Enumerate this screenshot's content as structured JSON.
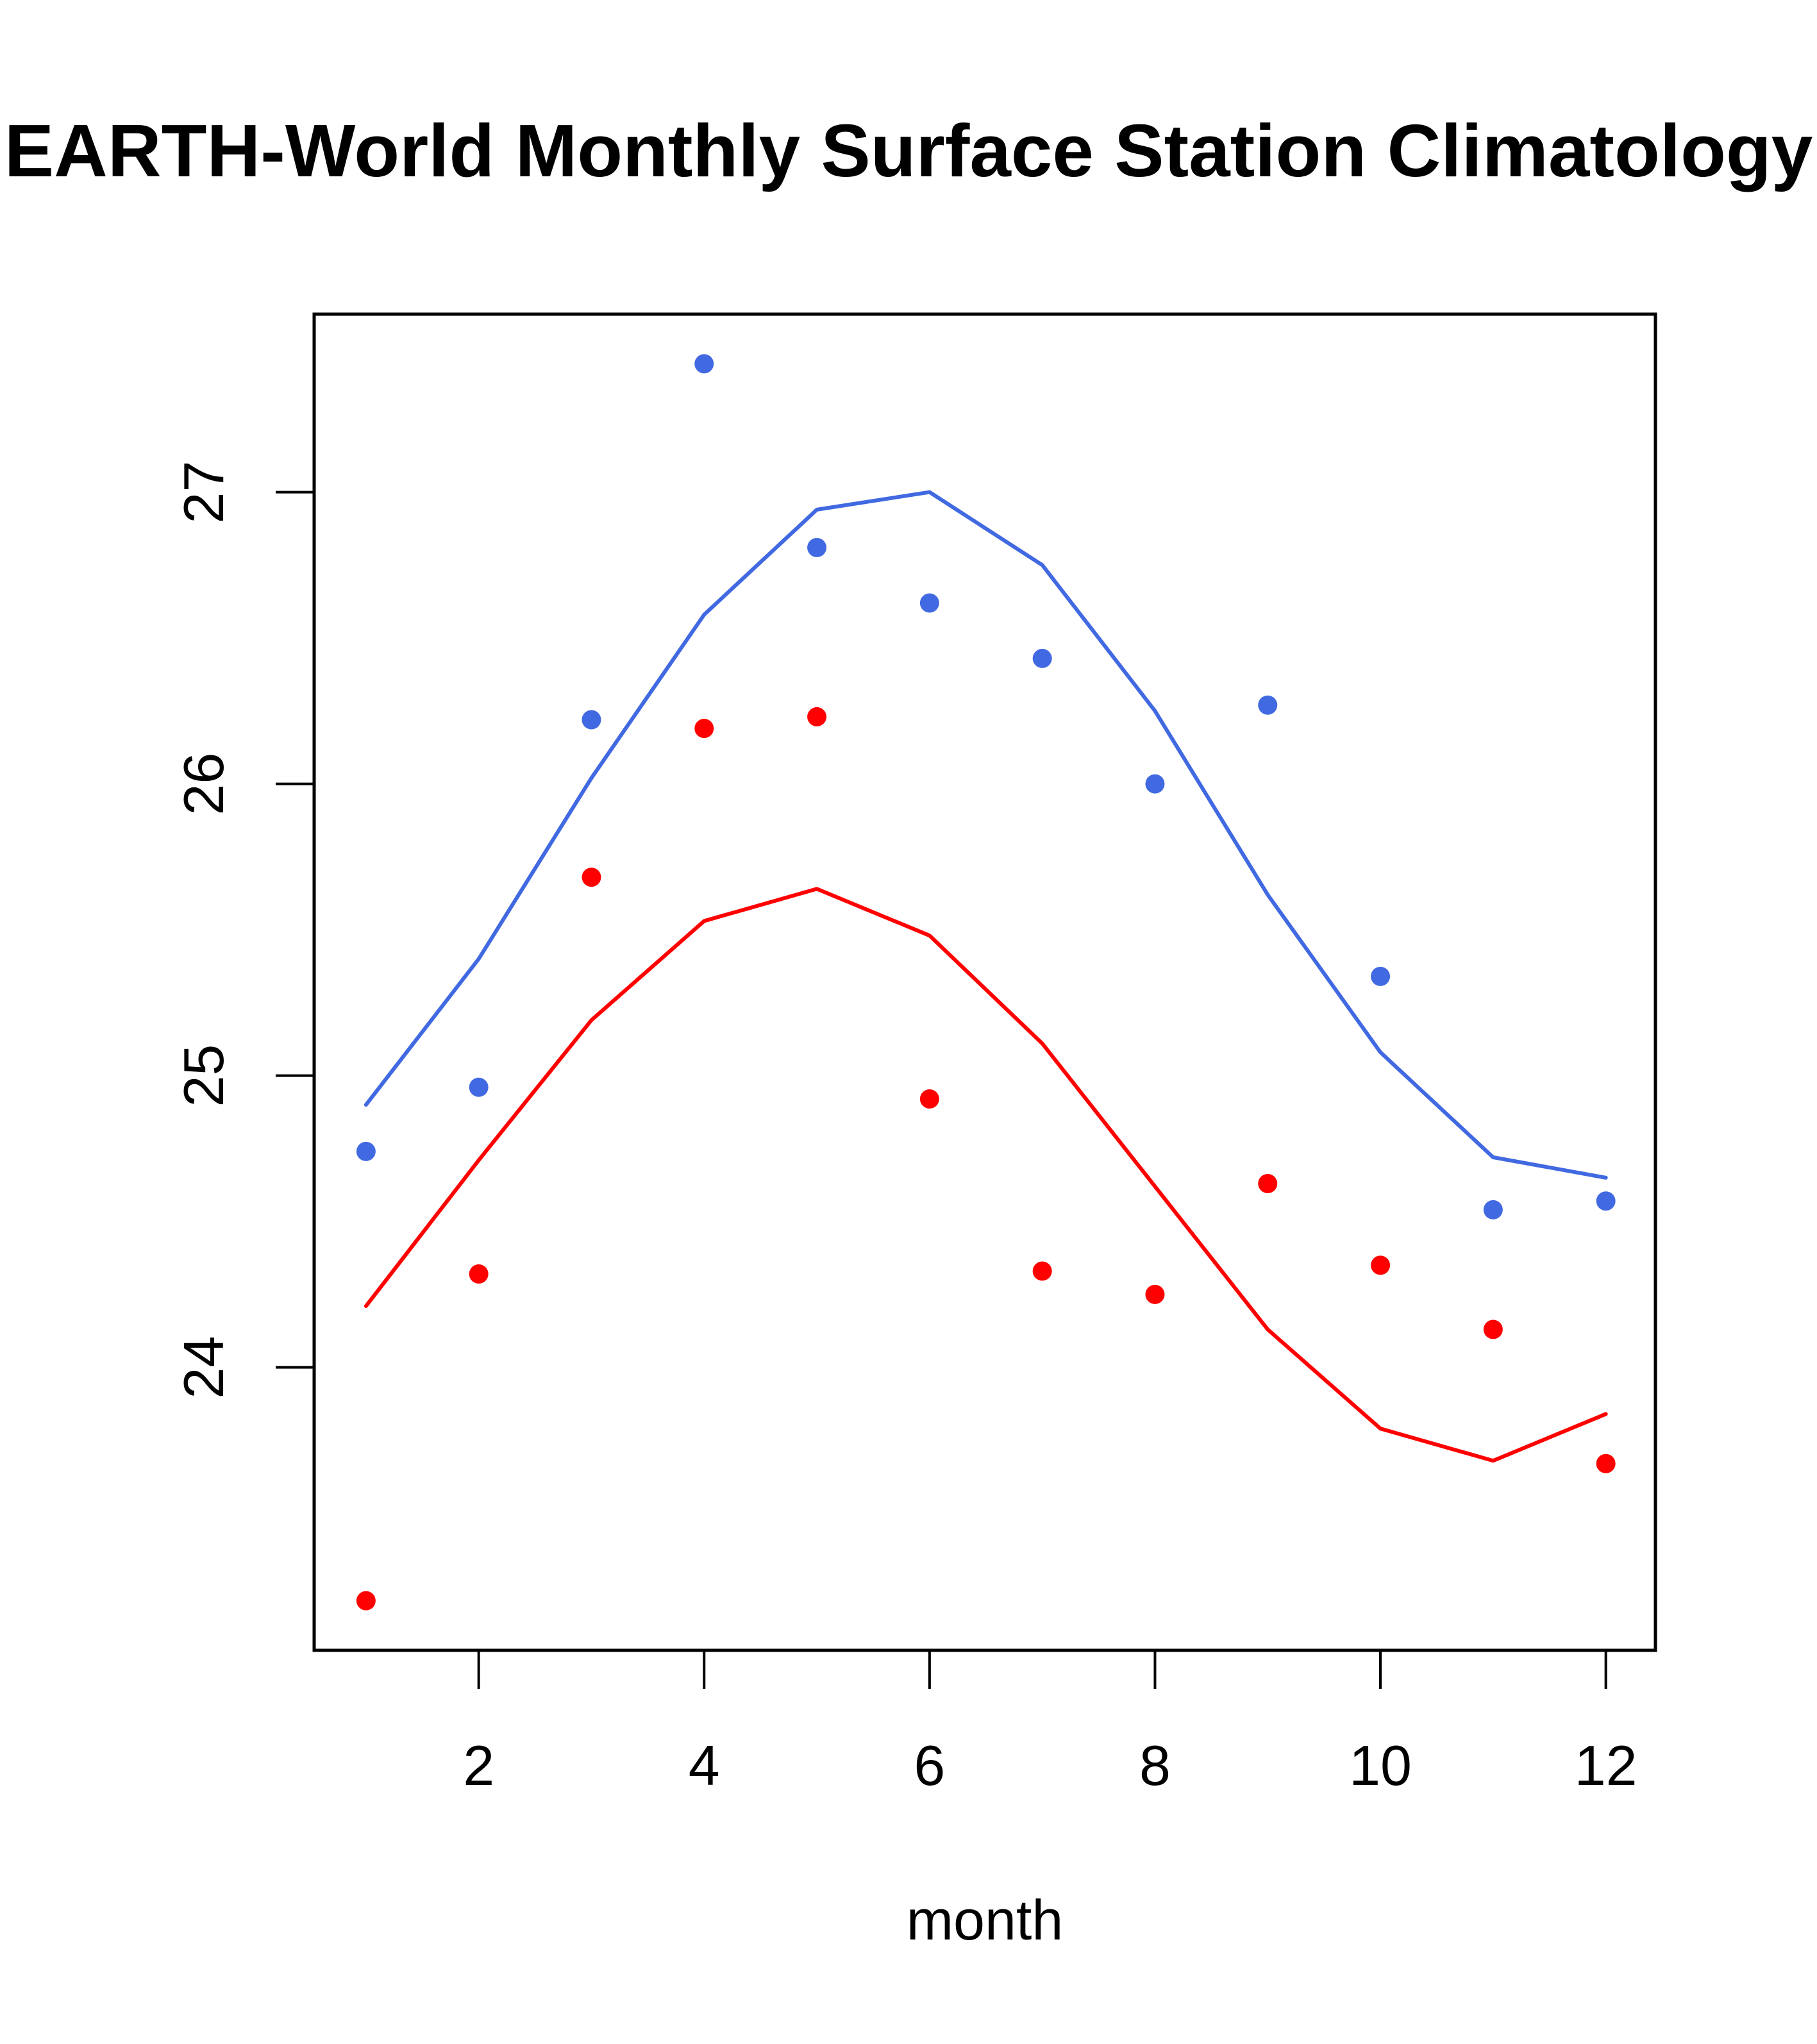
{
  "chart_data": {
    "type": "line",
    "title": "EARTH-World Monthly Surface Station Climatology",
    "xlabel": "month",
    "ylabel": "",
    "xlim": [
      0.54,
      12.44
    ],
    "ylim": [
      23.03,
      27.61
    ],
    "xticks": [
      2,
      4,
      6,
      8,
      10,
      12
    ],
    "yticks": [
      24,
      25,
      26,
      27
    ],
    "grid": false,
    "legend": "none",
    "x": [
      1,
      2,
      3,
      4,
      5,
      6,
      7,
      8,
      9,
      10,
      11,
      12
    ],
    "series": [
      {
        "name": "blue-line",
        "kind": "line",
        "color": "#4169E1",
        "values": [
          24.9,
          25.4,
          26.02,
          26.58,
          26.94,
          27.0,
          26.75,
          26.25,
          25.62,
          25.08,
          24.72,
          24.65
        ]
      },
      {
        "name": "blue-points",
        "kind": "scatter",
        "color": "#4169E1",
        "values": [
          24.74,
          24.96,
          26.22,
          27.44,
          26.81,
          26.62,
          26.43,
          26.0,
          26.27,
          25.34,
          24.54,
          24.57
        ]
      },
      {
        "name": "red-line",
        "kind": "line",
        "color": "#FF0000",
        "values": [
          24.21,
          24.71,
          25.19,
          25.53,
          25.64,
          25.48,
          25.11,
          24.62,
          24.13,
          23.79,
          23.68,
          23.84
        ]
      },
      {
        "name": "red-points",
        "kind": "scatter",
        "color": "#FF0000",
        "values": [
          23.2,
          24.32,
          25.68,
          26.19,
          26.23,
          24.92,
          24.33,
          24.25,
          24.63,
          24.35,
          24.13,
          23.67
        ]
      }
    ]
  }
}
